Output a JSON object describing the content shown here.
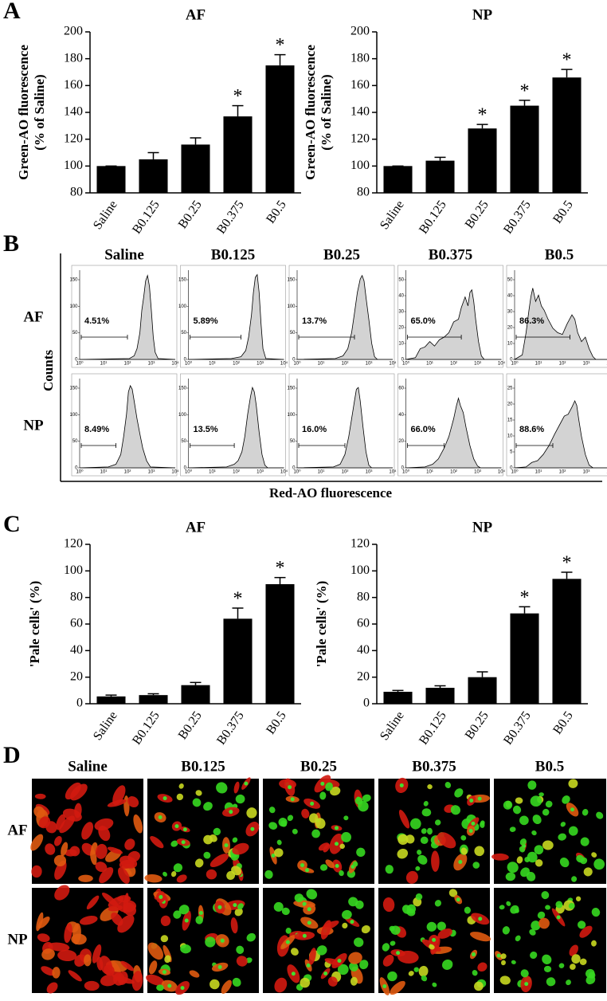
{
  "panel_letters": [
    "A",
    "B",
    "C",
    "D"
  ],
  "chart_data": [
    {
      "type": "bar",
      "title": "AF",
      "ylabel": [
        "Green-AO fluorescence",
        "(% of Saline)"
      ],
      "categories": [
        "Saline",
        "B0.125",
        "B0.25",
        "B0.375",
        "B0.5"
      ],
      "values": [
        100,
        105,
        116,
        137,
        175
      ],
      "errors": [
        0,
        5,
        5,
        8,
        8
      ],
      "color": "#000000",
      "ylim": [
        80,
        200
      ],
      "yticks": [
        80,
        100,
        120,
        140,
        160,
        180,
        200
      ],
      "significance": [
        {
          "index": 3,
          "label": "*"
        },
        {
          "index": 4,
          "label": "*"
        }
      ]
    },
    {
      "type": "bar",
      "title": "NP",
      "ylabel": [
        "Green-AO fluorescence",
        "(% of Saline)"
      ],
      "categories": [
        "Saline",
        "B0.125",
        "B0.25",
        "B0.375",
        "B0.5"
      ],
      "values": [
        100,
        104,
        128,
        145,
        166
      ],
      "errors": [
        0,
        2.5,
        3,
        4,
        6
      ],
      "color": "#000000",
      "ylim": [
        80,
        200
      ],
      "yticks": [
        80,
        100,
        120,
        140,
        160,
        180,
        200
      ],
      "significance": [
        {
          "index": 2,
          "label": "*"
        },
        {
          "index": 3,
          "label": "*"
        },
        {
          "index": 4,
          "label": "*"
        }
      ]
    },
    {
      "type": "bar",
      "title": "AF",
      "ylabel": "'Pale cells' (%)",
      "categories": [
        "Saline",
        "B0.125",
        "B0.25",
        "B0.375",
        "B0.5"
      ],
      "values": [
        5.5,
        6.5,
        14,
        64,
        90
      ],
      "errors": [
        1,
        1,
        2,
        8,
        5
      ],
      "color": "#000000",
      "ylim": [
        0,
        120
      ],
      "yticks": [
        0,
        20,
        40,
        60,
        80,
        100,
        120
      ],
      "significance": [
        {
          "index": 3,
          "label": "*"
        },
        {
          "index": 4,
          "label": "*"
        }
      ]
    },
    {
      "type": "bar",
      "title": "NP",
      "ylabel": "'Pale cells' (%)",
      "categories": [
        "Saline",
        "B0.125",
        "B0.25",
        "B0.375",
        "B0.5"
      ],
      "values": [
        9,
        12,
        20,
        68,
        94
      ],
      "errors": [
        1,
        1.5,
        4,
        5,
        5
      ],
      "color": "#000000",
      "ylim": [
        0,
        120
      ],
      "yticks": [
        0,
        20,
        40,
        60,
        80,
        100,
        120
      ],
      "significance": [
        {
          "index": 3,
          "label": "*"
        },
        {
          "index": 4,
          "label": "*"
        }
      ]
    }
  ],
  "panel_b": {
    "columns": [
      "Saline",
      "B0.125",
      "B0.25",
      "B0.375",
      "B0.5"
    ],
    "rows": [
      "AF",
      "NP"
    ],
    "gates": [
      [
        "4.51%",
        "5.89%",
        "13.7%",
        "65.0%",
        "86.3%"
      ],
      [
        "8.49%",
        "13.5%",
        "16.0%",
        "66.0%",
        "88.6%"
      ]
    ],
    "yticks": [
      [
        [
          0,
          50,
          100,
          150
        ],
        [
          0,
          50,
          100,
          150
        ],
        [
          0,
          50,
          100,
          150
        ],
        [
          0,
          10,
          20,
          30,
          40,
          50
        ],
        [
          0,
          10,
          20,
          30,
          40,
          50
        ]
      ],
      [
        [
          0,
          50,
          100,
          150
        ],
        [
          0,
          50,
          100,
          150
        ],
        [
          0,
          50,
          100,
          150
        ],
        [
          0,
          20,
          40,
          60
        ],
        [
          0,
          5,
          10,
          15,
          20,
          25
        ]
      ]
    ],
    "xticks": [
      "10⁰",
      "10¹",
      "10²",
      "10³",
      "10⁴"
    ],
    "ylabel": "Counts",
    "xlabel": "Red-AO fluorescence"
  },
  "panel_d": {
    "columns": [
      "Saline",
      "B0.125",
      "B0.25",
      "B0.375",
      "B0.5"
    ],
    "rows": [
      "AF",
      "NP"
    ]
  }
}
